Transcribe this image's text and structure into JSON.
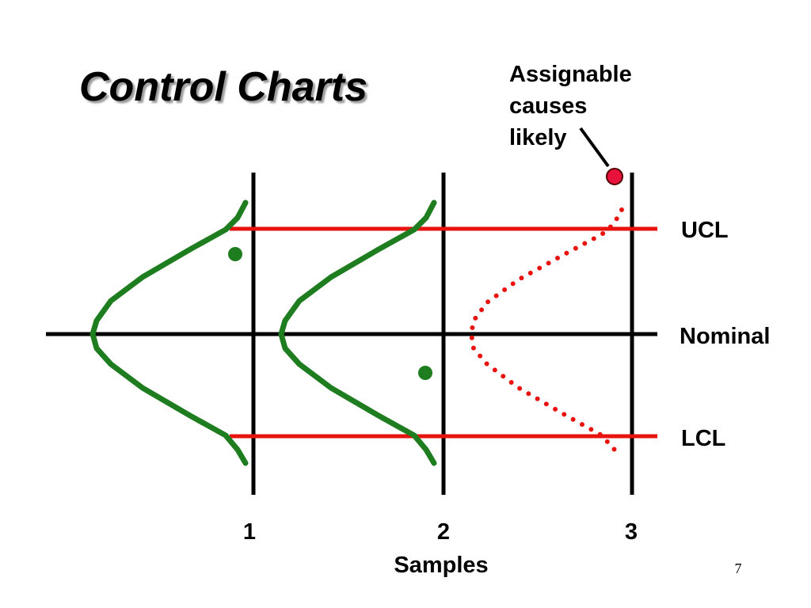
{
  "title": "Control Charts",
  "annotation": {
    "lines": [
      "Assignable",
      "causes",
      "likely"
    ]
  },
  "limits": {
    "upper": "UCL",
    "nominal": "Nominal",
    "lower": "LCL"
  },
  "samples": {
    "labels": [
      "1",
      "2",
      "3"
    ],
    "title": "Samples"
  },
  "page_number": "7"
}
